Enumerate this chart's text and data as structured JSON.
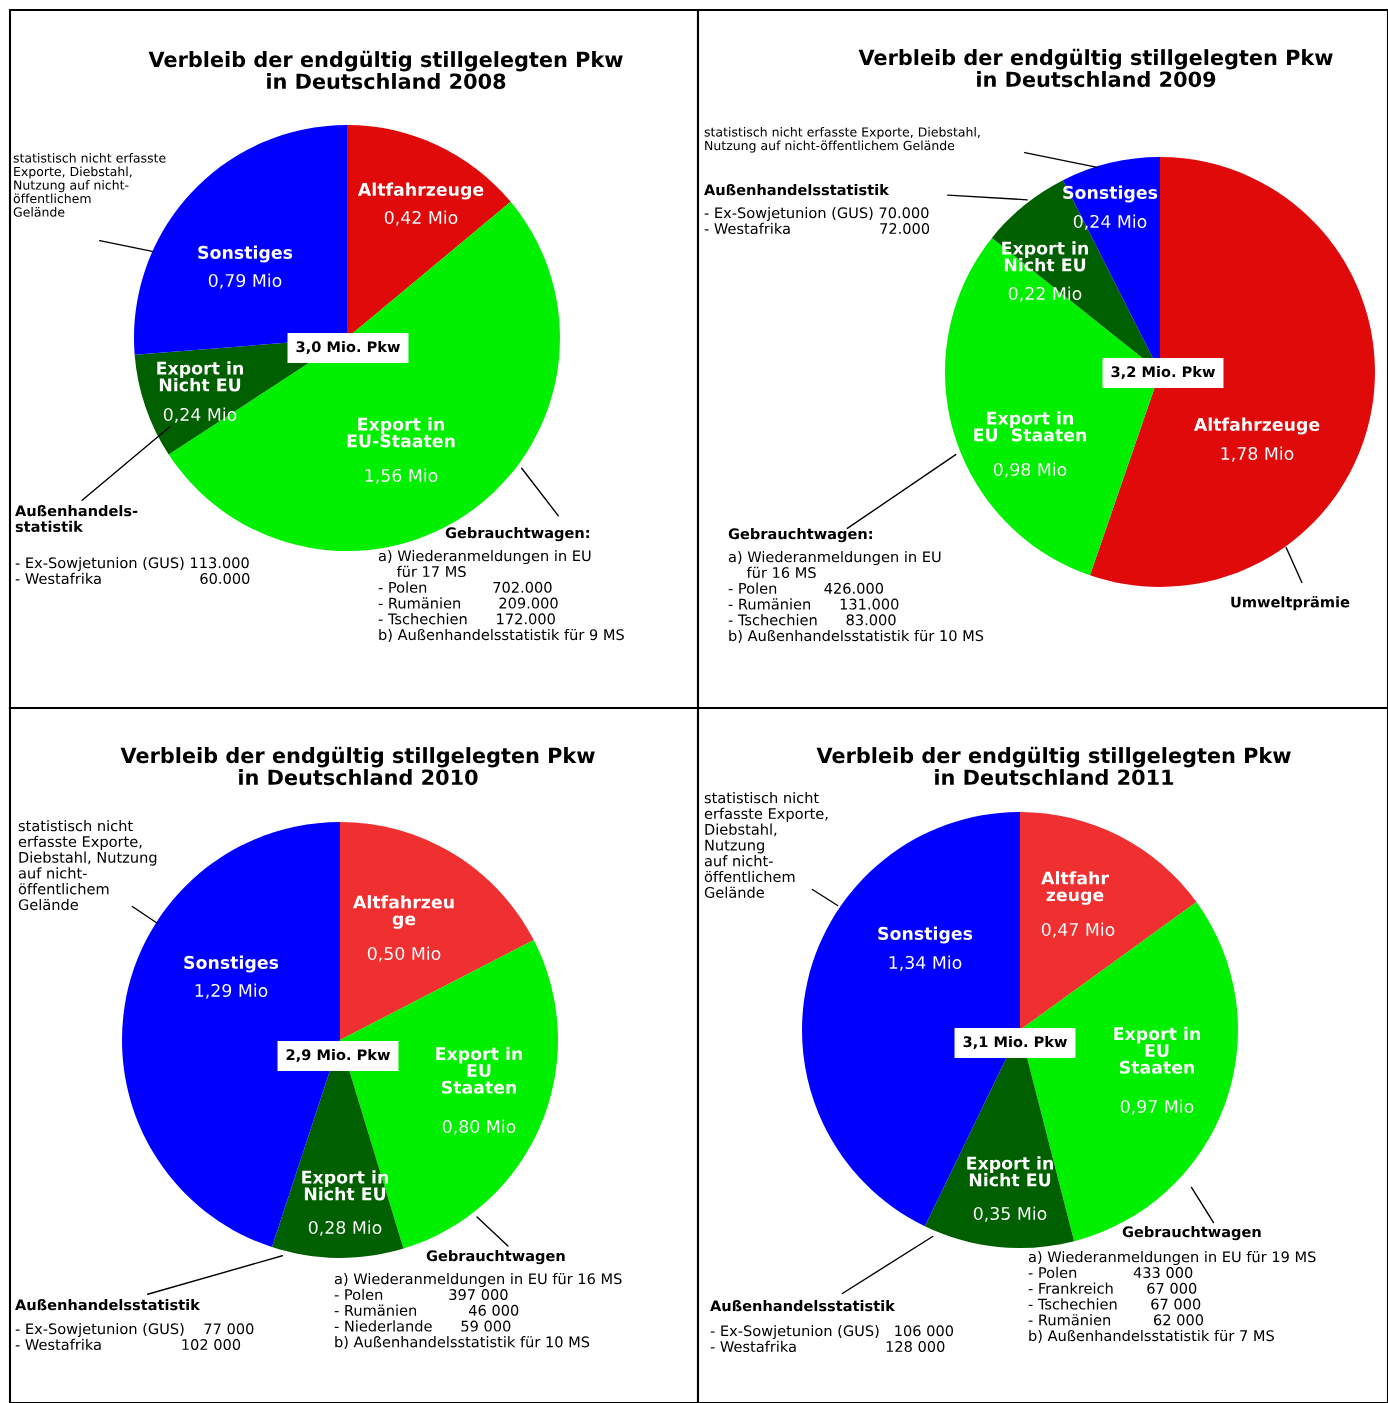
{
  "chart_data": [
    {
      "type": "pie",
      "title": "Verbleib der endgültig stillgelegten Pkw\nin Deutschland 2008",
      "categories": [
        "Altfahrzeuge",
        "Export in\nEU-Staaten",
        "Export in\nNicht EU",
        "Sonstiges"
      ],
      "values": [
        0.42,
        1.56,
        0.24,
        0.79
      ],
      "value_labels": [
        "0,42 Mio",
        "1,56 Mio",
        "0,24 Mio",
        "0,79 Mio"
      ],
      "colors": [
        "#e00a0a",
        "#00f000",
        "#006000",
        "#0000ff"
      ],
      "annotations": [
        "3,0 Mio. Pkw",
        "statistisch nicht erfasste\nExporte, Diebstahl,\nNutzung auf nicht-\nöffentlichem\nGelände",
        "Außenhandels-\nstatistik",
        "- Ex-Sowjetunion (GUS) 113.000\n- Westafrika                     60.000",
        "Gebrauchtwagen:",
        "a) Wiederanmeldungen in EU\n    für 17 MS\n- Polen              702.000\n- Rumänien        209.000\n- Tschechien      172.000\nb) Außenhandelsstatistik für 9 MS"
      ]
    },
    {
      "type": "pie",
      "title": "Verbleib der endgültig stillgelegten Pkw\nin Deutschland 2009",
      "categories": [
        "Altfahrzeuge",
        "Export in\nEU  Staaten",
        "Export in\nNicht EU",
        "Sonstiges"
      ],
      "values": [
        1.78,
        0.98,
        0.22,
        0.24
      ],
      "value_labels": [
        "1,78 Mio",
        "0,98 Mio",
        "0,22 Mio",
        "0,24 Mio"
      ],
      "colors": [
        "#e00a0a",
        "#00f000",
        "#006000",
        "#0000ff"
      ],
      "annotations": [
        "3,2 Mio. Pkw",
        "statistisch nicht erfasste Exporte, Diebstahl,\nNutzung auf nicht-öffentlichem Gelände",
        "Außenhandelsstatistik",
        "- Ex-Sowjetunion (GUS) 70.000\n- Westafrika                   72.000",
        "Gebrauchtwagen:",
        "a) Wiederanmeldungen in EU\n    für 16 MS\n- Polen          426.000\n- Rumänien      131.000\n- Tschechien      83.000\nb) Außenhandelsstatistik für 10 MS",
        "Umweltprämie"
      ]
    },
    {
      "type": "pie",
      "title": "Verbleib der endgültig stillgelegten Pkw\nin Deutschland 2010",
      "categories": [
        "Altfahrzeu\nge",
        "Export in\nEU\nStaaten",
        "Export in\nNicht EU",
        "Sonstiges"
      ],
      "values": [
        0.5,
        0.8,
        0.28,
        1.29
      ],
      "value_labels": [
        "0,50 Mio",
        "0,80 Mio",
        "0,28 Mio",
        "1,29 Mio"
      ],
      "colors": [
        "#f03030",
        "#00f000",
        "#006000",
        "#0000ff"
      ],
      "annotations": [
        "2,9 Mio. Pkw",
        "statistisch nicht\nerfasste Exporte,\nDiebstahl, Nutzung\nauf nicht-\nöffentlichem\nGelände",
        "Außenhandelsstatistik",
        "- Ex-Sowjetunion (GUS)    77 000\n- Westafrika                 102 000",
        "Gebrauchtwagen",
        "a) Wiederanmeldungen in EU für 16 MS\n- Polen              397 000\n- Rumänien           46 000\n- Niederlande      59 000\nb) Außenhandelsstatistik für 10 MS"
      ]
    },
    {
      "type": "pie",
      "title": "Verbleib der endgültig stillgelegten Pkw\nin Deutschland 2011",
      "categories": [
        "Altfahr\nzeuge",
        "Export in\nEU\nStaaten",
        "Export in\nNicht EU",
        "Sonstiges"
      ],
      "values": [
        0.47,
        0.97,
        0.35,
        1.34
      ],
      "value_labels": [
        "0,47 Mio",
        "0,97 Mio",
        "0,35 Mio",
        "1,34 Mio"
      ],
      "colors": [
        "#f03030",
        "#00f000",
        "#006000",
        "#0000ff"
      ],
      "annotations": [
        "3,1 Mio. Pkw",
        "statistisch nicht\nerfasste Exporte,\nDiebstahl,\nNutzung\nauf nicht-\nöffentlichem\nGelände",
        "Außenhandelsstatistik",
        "- Ex-Sowjetunion (GUS)   106 000\n- Westafrika                   128 000",
        "Gebrauchtwagen",
        "a) Wiederanmeldungen in EU für 19 MS\n- Polen            433 000\n- Frankreich       67 000\n- Tschechien       67 000\n- Rumänien         62 000\nb) Außenhandelsstatistik für 7 MS"
      ]
    }
  ]
}
